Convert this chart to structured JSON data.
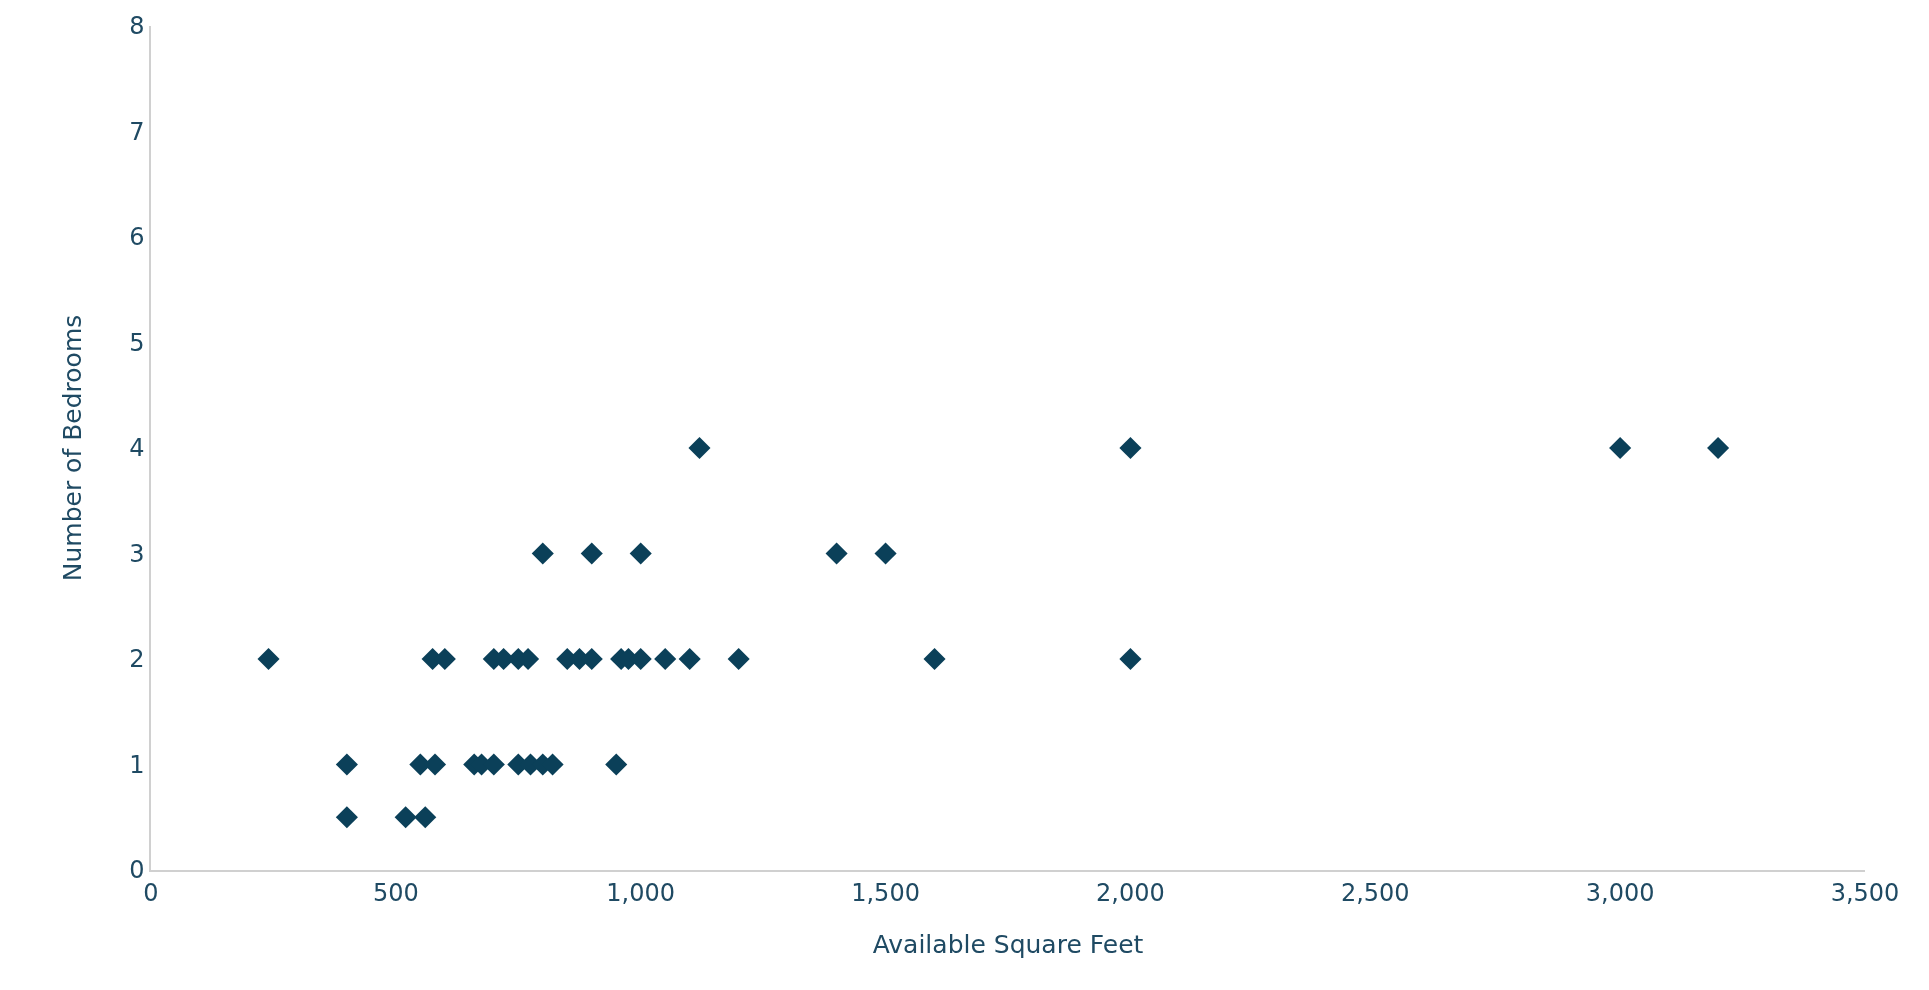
{
  "chart_data": {
    "type": "scatter",
    "xlabel": "Available Square Feet",
    "ylabel": "Number of Bedrooms",
    "x": [
      240,
      575,
      600,
      700,
      720,
      750,
      770,
      850,
      875,
      900,
      960,
      975,
      1000,
      1050,
      1100,
      1200,
      1600,
      2000,
      800,
      900,
      1000,
      1400,
      1500,
      1120,
      2000,
      3000,
      3200,
      400,
      550,
      580,
      660,
      675,
      700,
      750,
      775,
      800,
      820,
      950,
      400,
      520,
      560
    ],
    "series": [
      {
        "color": "#0b4059",
        "values": [
          2,
          2,
          2,
          2,
          2,
          2,
          2,
          2,
          2,
          2,
          2,
          2,
          2,
          2,
          2,
          2,
          2,
          2,
          3,
          3,
          3,
          3,
          3,
          4,
          4,
          4,
          4,
          1,
          1,
          1,
          1,
          1,
          1,
          1,
          1,
          1,
          1,
          1,
          0.5,
          0.5,
          0.5
        ]
      }
    ],
    "xlim": [
      0,
      3500
    ],
    "xticks": [
      0,
      {
        "value": 500,
        "label": "500"
      },
      {
        "value": 1000,
        "label": "1,000"
      },
      {
        "value": 1500,
        "label": "1,500"
      },
      {
        "value": 2000,
        "label": "2,000"
      },
      {
        "value": 2500,
        "label": "2,500"
      },
      {
        "value": 3000,
        "label": "3,000"
      },
      {
        "value": 3500,
        "label": "3,500"
      }
    ],
    "ylim": [
      0,
      8
    ],
    "yticks": [
      0,
      1,
      2,
      3,
      4,
      5,
      6,
      7,
      8
    ],
    "grid": false,
    "legend": false,
    "marker": "diamond"
  }
}
